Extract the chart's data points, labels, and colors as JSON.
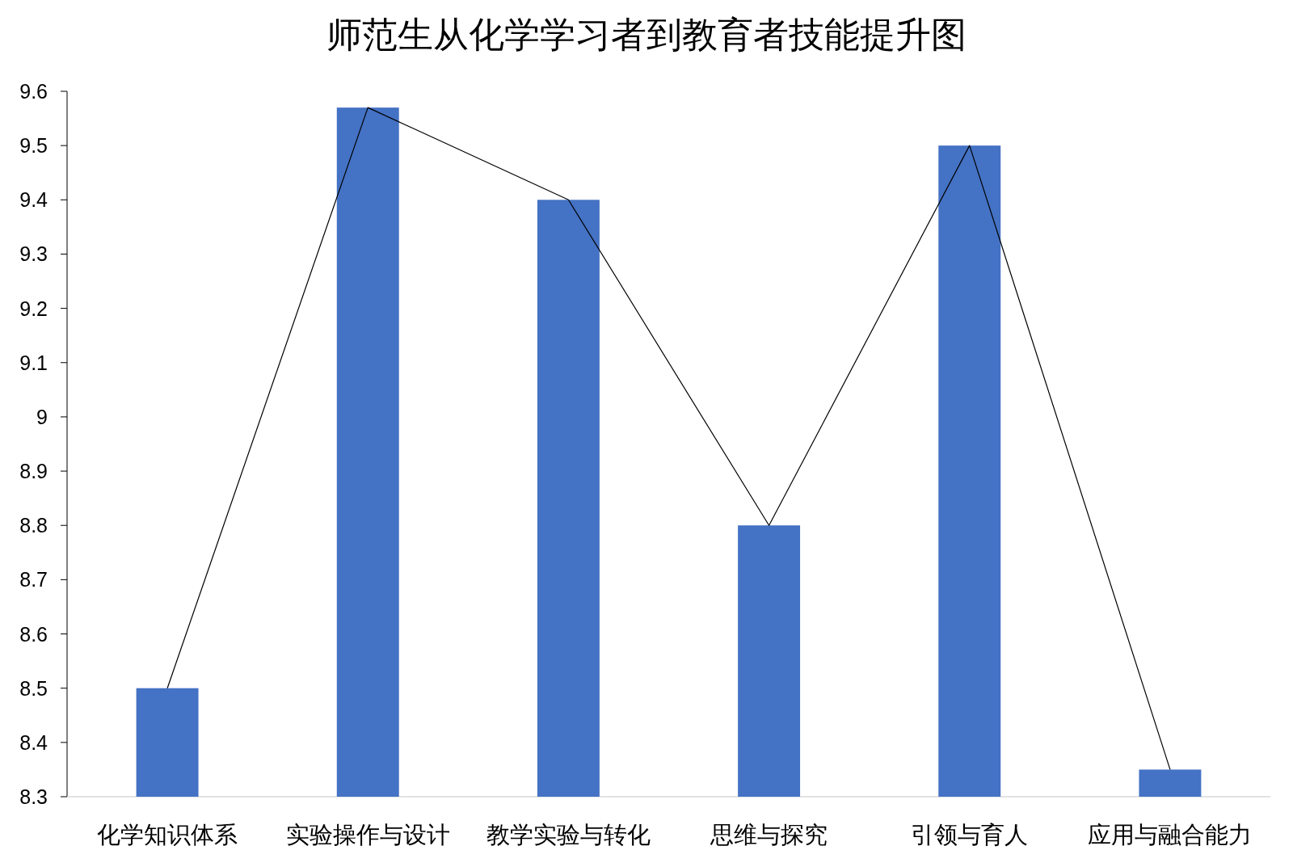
{
  "chart_data": {
    "type": "bar",
    "title": "师范生从化学学习者到教育者技能提升图",
    "categories": [
      "化学知识体系",
      "实验操作与设计",
      "教学实验与转化",
      "思维与探究",
      "引领与育人",
      "应用与融合能力"
    ],
    "series": [
      {
        "color": "#4472c4",
        "values": [
          8.5,
          9.57,
          9.4,
          8.8,
          9.5,
          8.35
        ]
      },
      {
        "type": "line",
        "color": "#000000",
        "values": [
          8.5,
          9.57,
          9.4,
          8.8,
          9.5,
          8.35
        ]
      }
    ],
    "ylim": [
      8.3,
      9.6
    ],
    "yticks": [
      8.3,
      8.4,
      8.5,
      8.6,
      8.7,
      8.8,
      8.9,
      9,
      9.1,
      9.2,
      9.3,
      9.4,
      9.5,
      9.6
    ]
  }
}
